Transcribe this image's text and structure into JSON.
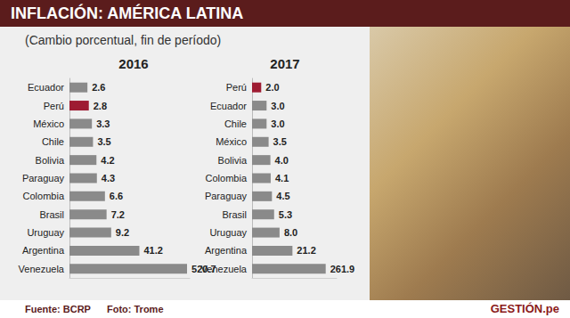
{
  "title": "INFLACIÓN: AMÉRICA LATINA",
  "subtitle": "(Cambio porcentual, fin de período)",
  "source": "Fuente: BCRP",
  "photo_credit": "Foto: Trome",
  "logo": "GESTIÓN.pe",
  "chart_data": [
    {
      "type": "bar",
      "title": "2016",
      "orientation": "horizontal",
      "log": "x",
      "categories": [
        "Ecuador",
        "Perú",
        "México",
        "Chile",
        "Bolivia",
        "Paraguay",
        "Colombia",
        "Brasil",
        "Uruguay",
        "Argentina",
        "Venezuela"
      ],
      "values": [
        2.6,
        2.8,
        3.3,
        3.5,
        4.2,
        4.3,
        6.6,
        7.2,
        9.2,
        41.2,
        520.7
      ],
      "colors": [
        "#8a8a8a",
        "#9e1b32",
        "#8a8a8a",
        "#8a8a8a",
        "#8a8a8a",
        "#8a8a8a",
        "#8a8a8a",
        "#8a8a8a",
        "#8a8a8a",
        "#8a8a8a",
        "#8a8a8a"
      ],
      "xlim": [
        1,
        600
      ],
      "grid": false,
      "data_labels": true,
      "tick_labels": "y"
    },
    {
      "type": "bar",
      "title": "2017",
      "orientation": "horizontal",
      "log": "x",
      "categories": [
        "Perú",
        "Ecuador",
        "Chile",
        "México",
        "Bolivia",
        "Colombia",
        "Paraguay",
        "Brasil",
        "Uruguay",
        "Argentina",
        "Venezuela"
      ],
      "values": [
        2.0,
        3.0,
        3.0,
        3.5,
        4.0,
        4.1,
        4.5,
        5.3,
        8.0,
        21.2,
        261.9
      ],
      "value_labels": [
        "2.0",
        "3.0",
        "3.0",
        "3.5",
        "4.0",
        "4.1",
        "4.5",
        "5.3",
        "8.0",
        "21.2",
        "261.9"
      ],
      "colors": [
        "#9e1b32",
        "#8a8a8a",
        "#8a8a8a",
        "#8a8a8a",
        "#8a8a8a",
        "#8a8a8a",
        "#8a8a8a",
        "#8a8a8a",
        "#8a8a8a",
        "#8a8a8a",
        "#8a8a8a"
      ],
      "xlim": [
        1,
        600
      ],
      "grid": false,
      "data_labels": true,
      "tick_labels": "y"
    }
  ]
}
